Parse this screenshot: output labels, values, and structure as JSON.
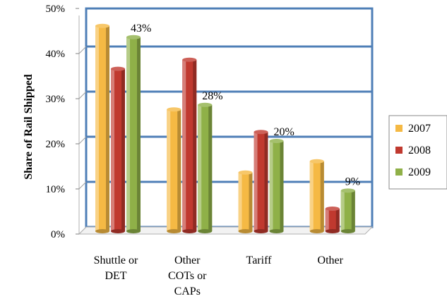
{
  "chart_data": {
    "type": "bar",
    "ylabel": "Share of Rail Shipped",
    "ylim": [
      0,
      50
    ],
    "y_ticks": [
      "0%",
      "10%",
      "20%",
      "30%",
      "40%",
      "50%"
    ],
    "categories": [
      [
        "Shuttle or",
        "DET"
      ],
      [
        "Other",
        "COTs or",
        "CAPs"
      ],
      [
        "Tariff"
      ],
      [
        "Other"
      ]
    ],
    "series": [
      {
        "name": "2007",
        "color": "#F5B944",
        "values": [
          45.5,
          27,
          13,
          15.5
        ]
      },
      {
        "name": "2008",
        "color": "#C0392F",
        "values": [
          36,
          38,
          22,
          5
        ]
      },
      {
        "name": "2009",
        "color": "#8FB048",
        "values": [
          43,
          28,
          20,
          9
        ]
      }
    ],
    "data_labels": [
      {
        "category": 0,
        "series": 2,
        "text": "43%"
      },
      {
        "category": 1,
        "series": 2,
        "text": "28%"
      },
      {
        "category": 2,
        "series": 2,
        "text": "20%"
      },
      {
        "category": 3,
        "series": 2,
        "text": "9%"
      }
    ],
    "legend_position": "right",
    "grid": true
  }
}
